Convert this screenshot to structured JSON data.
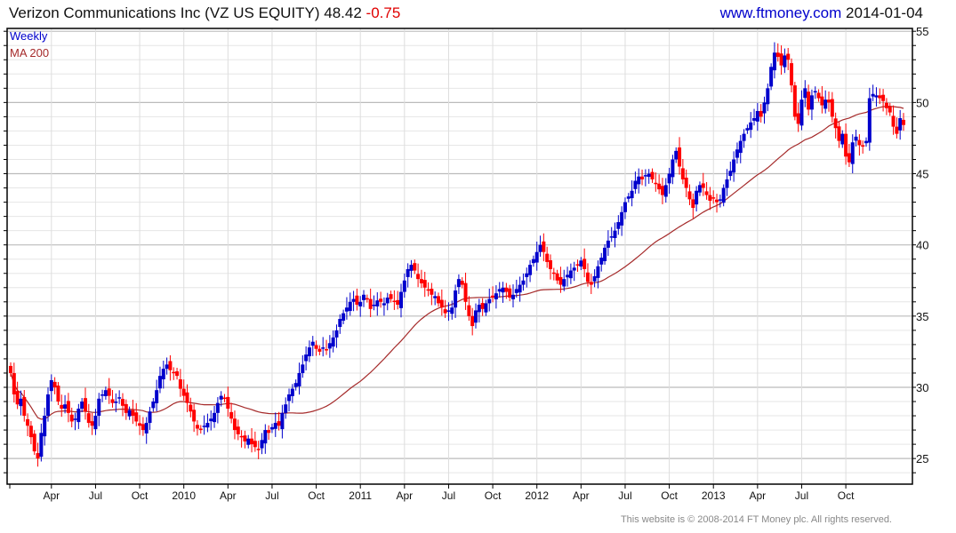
{
  "header": {
    "title": "Verizon Communications Inc (VZ US EQUITY) 48.42",
    "change": "-0.75",
    "site": "www.ftmoney.com",
    "date": "2014-01-04"
  },
  "footer": {
    "copyright": "This website is © 2008-2014 FT Money plc. All rights reserved."
  },
  "colors": {
    "up": "#0000cc",
    "down": "#ff0000",
    "ma": "#a52a2a",
    "legend_weekly": "#0000cc",
    "legend_ma": "#a52a2a"
  },
  "chart_data": {
    "type": "candlestick",
    "title": "Verizon Communications Inc (VZ US EQUITY)",
    "legend": [
      "Weekly",
      "MA 200"
    ],
    "legend_position": "top-left",
    "ylim": [
      23.2,
      55.2
    ],
    "yticks": [
      25,
      30,
      35,
      40,
      45,
      50,
      55
    ],
    "ytick_labels": [
      "25",
      "30",
      "35",
      "40",
      "45",
      "50",
      "55"
    ],
    "xtick_labels": [
      "Apr",
      "Jul",
      "Oct",
      "2010",
      "Apr",
      "Jul",
      "Oct",
      "2011",
      "Apr",
      "Jul",
      "Oct",
      "2012",
      "Apr",
      "Jul",
      "Oct",
      "2013",
      "Apr",
      "Jul",
      "Oct"
    ],
    "xtick_week_index": [
      12,
      25,
      38,
      51,
      64,
      77,
      90,
      103,
      116,
      129,
      142,
      155,
      168,
      181,
      194,
      207,
      220,
      233,
      246
    ],
    "frequency": "weekly",
    "ma_window_weeks": 40,
    "close": [
      31.0,
      29.5,
      28.8,
      29.2,
      28.0,
      27.3,
      26.5,
      25.5,
      25.0,
      26.8,
      28.0,
      29.5,
      30.5,
      30.0,
      29.0,
      28.5,
      28.8,
      28.2,
      27.6,
      27.8,
      28.5,
      29.0,
      28.3,
      27.5,
      27.3,
      28.0,
      29.2,
      29.5,
      29.8,
      29.4,
      28.9,
      29.0,
      29.3,
      28.7,
      28.2,
      28.4,
      28.0,
      27.6,
      27.3,
      27.0,
      27.5,
      28.3,
      29.0,
      29.8,
      30.8,
      31.3,
      31.6,
      31.2,
      31.0,
      30.8,
      29.9,
      29.4,
      28.9,
      28.3,
      27.6,
      27.1,
      27.0,
      27.3,
      27.5,
      27.8,
      28.2,
      28.9,
      29.4,
      29.2,
      28.5,
      27.8,
      27.0,
      26.7,
      26.5,
      26.2,
      26.4,
      26.0,
      25.8,
      25.6,
      26.3,
      27.0,
      26.8,
      27.2,
      27.5,
      27.3,
      28.2,
      28.8,
      29.5,
      29.9,
      30.3,
      31.0,
      31.6,
      32.3,
      32.8,
      33.2,
      32.7,
      32.5,
      32.8,
      32.6,
      33.1,
      33.5,
      34.0,
      34.8,
      35.2,
      35.6,
      36.0,
      36.2,
      35.8,
      36.0,
      36.5,
      36.2,
      35.5,
      35.8,
      36.1,
      36.0,
      35.9,
      36.3,
      36.2,
      36.0,
      35.8,
      36.7,
      37.5,
      38.3,
      38.6,
      38.2,
      37.6,
      37.3,
      37.0,
      36.8,
      36.5,
      36.4,
      35.9,
      35.6,
      35.2,
      35.4,
      35.6,
      36.8,
      37.6,
      37.2,
      36.0,
      35.0,
      34.3,
      35.4,
      35.8,
      35.5,
      35.9,
      36.2,
      36.3,
      36.6,
      36.9,
      37.0,
      36.7,
      36.3,
      36.5,
      36.9,
      37.2,
      37.5,
      38.0,
      38.6,
      39.0,
      39.5,
      40.0,
      39.5,
      38.8,
      38.3,
      38.0,
      37.5,
      37.2,
      37.6,
      37.9,
      38.2,
      38.4,
      38.6,
      38.9,
      38.3,
      37.4,
      37.2,
      37.8,
      38.5,
      39.1,
      39.8,
      40.3,
      40.6,
      41.0,
      41.6,
      42.3,
      43.0,
      43.4,
      43.8,
      44.5,
      44.8,
      44.6,
      44.9,
      45.0,
      44.6,
      44.3,
      43.9,
      43.5,
      44.2,
      45.0,
      46.0,
      46.6,
      45.5,
      44.6,
      44.0,
      43.2,
      42.6,
      43.8,
      44.2,
      44.0,
      43.5,
      43.1,
      43.3,
      43.0,
      43.2,
      44.0,
      44.6,
      45.2,
      46.0,
      46.7,
      47.3,
      47.8,
      48.2,
      48.6,
      48.9,
      49.4,
      49.0,
      50.0,
      51.0,
      52.5,
      53.5,
      53.2,
      52.6,
      53.3,
      53.0,
      51.2,
      49.0,
      48.5,
      50.2,
      51.0,
      49.5,
      50.5,
      50.8,
      50.3,
      49.8,
      50.2,
      50.0,
      49.0,
      48.2,
      47.3,
      47.8,
      46.2,
      45.8,
      47.2,
      47.6,
      47.0,
      46.9,
      47.3,
      50.3,
      50.6,
      50.5,
      50.3,
      50.1,
      49.6,
      49.3,
      48.3,
      47.8,
      48.9,
      48.42
    ]
  }
}
